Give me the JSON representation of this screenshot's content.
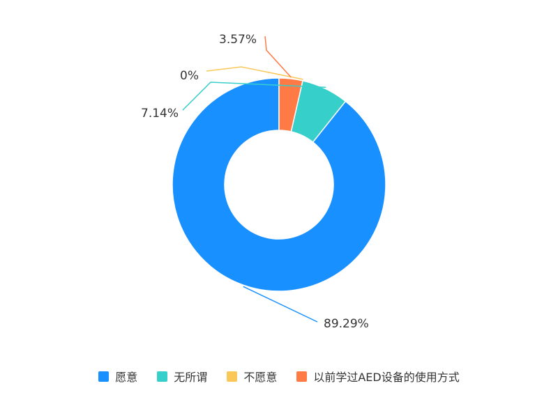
{
  "chart_data": {
    "type": "pie",
    "subtype": "donut",
    "categories": [
      "愿意",
      "无所谓",
      "不愿意",
      "以前学过AED设备的使用方式"
    ],
    "values": [
      89.29,
      7.14,
      0,
      3.57
    ],
    "value_labels": [
      "89.29%",
      "7.14%",
      "0%",
      "3.57%"
    ],
    "colors": [
      "#1890ff",
      "#36cfc9",
      "#fac858",
      "#ff7a45"
    ],
    "legend_position": "bottom-center"
  }
}
